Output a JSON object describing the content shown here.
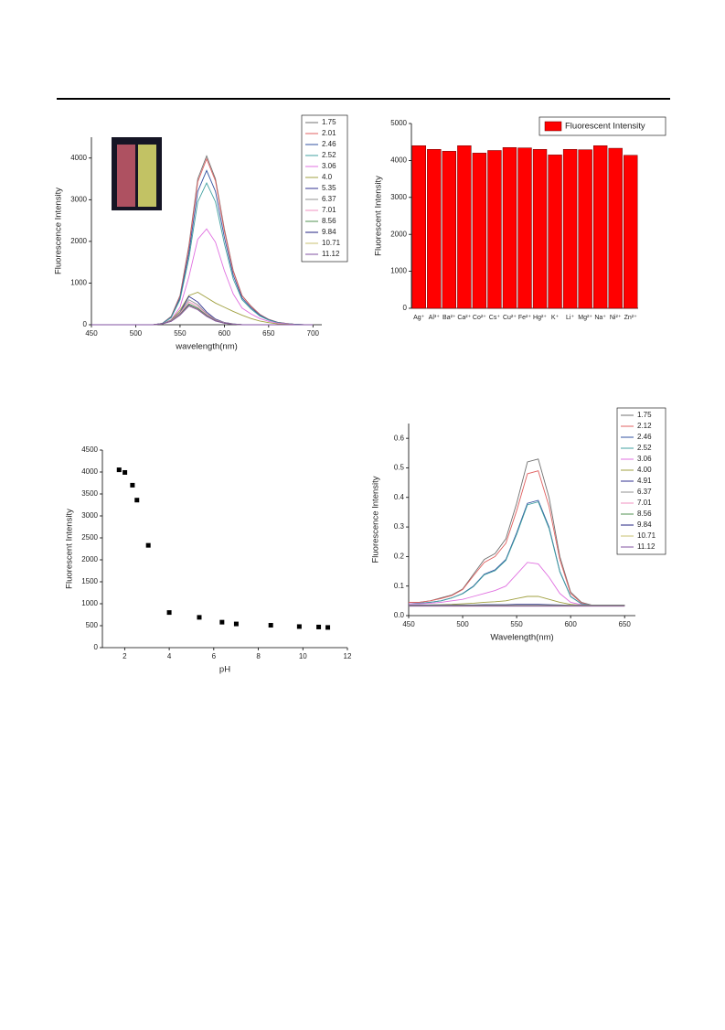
{
  "chart_data": [
    {
      "type": "line",
      "xlabel": "wavelength(nm)",
      "ylabel": "Fluorescence Intensity",
      "x": [
        450,
        460,
        470,
        480,
        490,
        500,
        510,
        520,
        530,
        540,
        550,
        560,
        570,
        580,
        590,
        600,
        610,
        620,
        630,
        640,
        650,
        660,
        670,
        680,
        690,
        700
      ],
      "xlim": [
        450,
        710
      ],
      "xticks": [
        450,
        500,
        550,
        600,
        650,
        700
      ],
      "ylim": [
        0,
        4500
      ],
      "yticks": [
        0,
        1000,
        2000,
        3000,
        4000
      ],
      "series": [
        {
          "name": "1.75",
          "color": "#707070",
          "values": [
            0,
            0,
            0,
            0,
            0,
            0,
            0,
            0,
            30,
            200,
            700,
            1900,
            3500,
            4050,
            3500,
            2300,
            1300,
            700,
            450,
            250,
            130,
            60,
            30,
            10,
            0,
            0
          ]
        },
        {
          "name": "2.01",
          "color": "#e06060",
          "values": [
            0,
            0,
            0,
            0,
            0,
            0,
            0,
            0,
            30,
            190,
            680,
            1850,
            3430,
            3980,
            3450,
            2250,
            1280,
            690,
            440,
            245,
            125,
            60,
            30,
            10,
            0,
            0
          ]
        },
        {
          "name": "2.46",
          "color": "#3050a0",
          "values": [
            0,
            0,
            0,
            0,
            0,
            0,
            0,
            0,
            30,
            180,
            640,
            1720,
            3200,
            3700,
            3200,
            2100,
            1190,
            640,
            410,
            230,
            120,
            55,
            25,
            10,
            0,
            0
          ]
        },
        {
          "name": "2.52",
          "color": "#40a0a0",
          "values": [
            0,
            0,
            0,
            0,
            0,
            0,
            0,
            0,
            25,
            170,
            600,
            1600,
            2950,
            3400,
            2950,
            1950,
            1100,
            600,
            380,
            210,
            110,
            50,
            25,
            10,
            0,
            0
          ]
        },
        {
          "name": "3.06",
          "color": "#e070e0",
          "values": [
            0,
            0,
            0,
            0,
            0,
            0,
            0,
            0,
            20,
            120,
            420,
            1150,
            2050,
            2300,
            1980,
            1300,
            740,
            400,
            260,
            150,
            80,
            40,
            20,
            5,
            0,
            0
          ]
        },
        {
          "name": "4.0",
          "color": "#a0a040",
          "values": [
            0,
            0,
            0,
            0,
            0,
            0,
            0,
            0,
            20,
            110,
            350,
            700,
            780,
            650,
            520,
            420,
            320,
            230,
            150,
            90,
            50,
            20,
            10,
            0,
            0,
            0
          ]
        },
        {
          "name": "5.35",
          "color": "#303090",
          "values": [
            0,
            0,
            0,
            0,
            0,
            0,
            0,
            0,
            20,
            100,
            300,
            680,
            545,
            305,
            135,
            55,
            20,
            0,
            0,
            0,
            0,
            0,
            0,
            0,
            0,
            0
          ]
        },
        {
          "name": "6.37",
          "color": "#909090",
          "values": [
            0,
            0,
            0,
            0,
            0,
            0,
            0,
            0,
            20,
            100,
            290,
            600,
            480,
            270,
            120,
            50,
            18,
            0,
            0,
            0,
            0,
            0,
            0,
            0,
            0,
            0
          ]
        },
        {
          "name": "7.01",
          "color": "#f090c0",
          "values": [
            0,
            0,
            0,
            0,
            0,
            0,
            0,
            0,
            20,
            95,
            270,
            550,
            440,
            250,
            110,
            45,
            16,
            0,
            0,
            0,
            0,
            0,
            0,
            0,
            0,
            0
          ]
        },
        {
          "name": "8.56",
          "color": "#509050",
          "values": [
            0,
            0,
            0,
            0,
            0,
            0,
            0,
            0,
            20,
            90,
            250,
            500,
            400,
            225,
            100,
            40,
            15,
            0,
            0,
            0,
            0,
            0,
            0,
            0,
            0,
            0
          ]
        },
        {
          "name": "9.84",
          "color": "#202080",
          "values": [
            0,
            0,
            0,
            0,
            0,
            0,
            0,
            0,
            20,
            85,
            240,
            470,
            375,
            210,
            95,
            38,
            14,
            0,
            0,
            0,
            0,
            0,
            0,
            0,
            0,
            0
          ]
        },
        {
          "name": "10.71",
          "color": "#c8c070",
          "values": [
            0,
            0,
            0,
            0,
            0,
            0,
            0,
            0,
            20,
            85,
            235,
            460,
            370,
            205,
            92,
            37,
            14,
            0,
            0,
            0,
            0,
            0,
            0,
            0,
            0,
            0
          ]
        },
        {
          "name": "11.12",
          "color": "#8050a0",
          "values": [
            0,
            0,
            0,
            0,
            0,
            0,
            0,
            0,
            20,
            80,
            230,
            450,
            360,
            200,
            90,
            36,
            13,
            0,
            0,
            0,
            0,
            0,
            0,
            0,
            0,
            0
          ]
        }
      ]
    },
    {
      "type": "bar",
      "ylabel": "Fluorescent Intensity",
      "categories": [
        "Ag⁺",
        "Al³⁺",
        "Ba²⁺",
        "Ca²⁺",
        "Co²⁺",
        "Cs⁺",
        "Cu²⁺",
        "Fe²⁺",
        "Hg²⁺",
        "K⁺",
        "Li⁺",
        "Mg²⁺",
        "Na⁺",
        "Ni²⁺",
        "Zn²⁺"
      ],
      "ylim": [
        0,
        5000
      ],
      "yticks": [
        0,
        1000,
        2000,
        3000,
        4000,
        5000
      ],
      "series": [
        {
          "name": "Fluorescent Intensity",
          "color": "#ff0000",
          "values": [
            4400,
            4300,
            4250,
            4400,
            4200,
            4270,
            4350,
            4340,
            4300,
            4150,
            4300,
            4290,
            4400,
            4330,
            4140
          ]
        }
      ]
    },
    {
      "type": "scatter",
      "xlabel": "pH",
      "ylabel": "Fluorescent Intensity",
      "x": [
        1.75,
        2.01,
        2.35,
        2.55,
        3.06,
        4.0,
        5.35,
        6.37,
        7.01,
        8.56,
        9.84,
        10.71,
        11.12
      ],
      "values": [
        4050,
        3990,
        3700,
        3360,
        2330,
        800,
        690,
        580,
        540,
        510,
        480,
        470,
        460
      ],
      "xlim": [
        1,
        12
      ],
      "xticks": [
        2,
        4,
        6,
        8,
        10,
        12
      ],
      "ylim": [
        0,
        4500
      ],
      "yticks": [
        0,
        500,
        1000,
        1500,
        2000,
        2500,
        3000,
        3500,
        4000,
        4500
      ],
      "color": "#000000"
    },
    {
      "type": "line",
      "xlabel": "Wavelength(nm)",
      "ylabel": "Fluorescence Intensity",
      "x": [
        450,
        460,
        470,
        480,
        490,
        500,
        510,
        520,
        530,
        540,
        550,
        560,
        570,
        580,
        590,
        600,
        610,
        620,
        630,
        640,
        650
      ],
      "xlim": [
        450,
        660
      ],
      "xticks": [
        450,
        500,
        550,
        600,
        650
      ],
      "ylim": [
        0,
        0.65
      ],
      "yticks": [
        {
          "value": 0,
          "label": "0.0"
        },
        0.1,
        0.2,
        0.3,
        0.4,
        0.5,
        0.6
      ],
      "series": [
        {
          "name": "1.75",
          "color": "#707070",
          "values": [
            0.045,
            0.045,
            0.05,
            0.06,
            0.07,
            0.09,
            0.14,
            0.19,
            0.21,
            0.26,
            0.38,
            0.52,
            0.53,
            0.4,
            0.2,
            0.08,
            0.045,
            0.035,
            0.035,
            0.035,
            0.035
          ]
        },
        {
          "name": "2.12",
          "color": "#e06060",
          "values": [
            0.045,
            0.045,
            0.05,
            0.058,
            0.068,
            0.088,
            0.135,
            0.18,
            0.2,
            0.245,
            0.355,
            0.48,
            0.49,
            0.37,
            0.19,
            0.075,
            0.043,
            0.035,
            0.035,
            0.035,
            0.035
          ]
        },
        {
          "name": "2.46",
          "color": "#3050a0",
          "values": [
            0.04,
            0.042,
            0.045,
            0.05,
            0.06,
            0.075,
            0.1,
            0.14,
            0.155,
            0.19,
            0.28,
            0.38,
            0.39,
            0.3,
            0.15,
            0.065,
            0.04,
            0.035,
            0.035,
            0.035,
            0.035
          ]
        },
        {
          "name": "2.52",
          "color": "#40a0a0",
          "values": [
            0.04,
            0.042,
            0.045,
            0.05,
            0.06,
            0.074,
            0.098,
            0.138,
            0.152,
            0.187,
            0.275,
            0.375,
            0.385,
            0.295,
            0.148,
            0.064,
            0.04,
            0.035,
            0.035,
            0.035,
            0.035
          ]
        },
        {
          "name": "3.06",
          "color": "#e070e0",
          "values": [
            0.04,
            0.04,
            0.042,
            0.045,
            0.05,
            0.055,
            0.065,
            0.075,
            0.085,
            0.1,
            0.14,
            0.18,
            0.175,
            0.13,
            0.075,
            0.045,
            0.037,
            0.035,
            0.035,
            0.035,
            0.035
          ]
        },
        {
          "name": "4.00",
          "color": "#a0a040",
          "values": [
            0.035,
            0.035,
            0.036,
            0.037,
            0.038,
            0.04,
            0.042,
            0.045,
            0.047,
            0.05,
            0.058,
            0.065,
            0.065,
            0.055,
            0.045,
            0.038,
            0.035,
            0.035,
            0.035,
            0.035,
            0.035
          ]
        },
        {
          "name": "4.91",
          "color": "#303090",
          "values": [
            0.036,
            0.036,
            0.036,
            0.036,
            0.036,
            0.036,
            0.036,
            0.037,
            0.037,
            0.037,
            0.038,
            0.038,
            0.038,
            0.037,
            0.036,
            0.035,
            0.035,
            0.035,
            0.035,
            0.035,
            0.035
          ]
        },
        {
          "name": "6.37",
          "color": "#909090",
          "values": [
            0.035,
            0.035,
            0.035,
            0.035,
            0.035,
            0.035,
            0.035,
            0.035,
            0.035,
            0.035,
            0.035,
            0.035,
            0.035,
            0.035,
            0.035,
            0.035,
            0.035,
            0.035,
            0.035,
            0.035,
            0.035
          ]
        },
        {
          "name": "7.01",
          "color": "#f090c0",
          "values": [
            0.034,
            0.034,
            0.034,
            0.034,
            0.034,
            0.034,
            0.034,
            0.034,
            0.034,
            0.034,
            0.034,
            0.034,
            0.034,
            0.034,
            0.034,
            0.034,
            0.034,
            0.034,
            0.034,
            0.034,
            0.034
          ]
        },
        {
          "name": "8.56",
          "color": "#509050",
          "values": [
            0.034,
            0.034,
            0.034,
            0.034,
            0.034,
            0.034,
            0.034,
            0.034,
            0.034,
            0.034,
            0.034,
            0.034,
            0.034,
            0.034,
            0.034,
            0.034,
            0.034,
            0.034,
            0.034,
            0.034,
            0.034
          ]
        },
        {
          "name": "9.84",
          "color": "#202080",
          "values": [
            0.033,
            0.033,
            0.033,
            0.033,
            0.033,
            0.033,
            0.033,
            0.033,
            0.033,
            0.033,
            0.033,
            0.033,
            0.033,
            0.033,
            0.033,
            0.033,
            0.033,
            0.033,
            0.033,
            0.033,
            0.033
          ]
        },
        {
          "name": "10.71",
          "color": "#c8c070",
          "values": [
            0.033,
            0.033,
            0.033,
            0.033,
            0.033,
            0.033,
            0.033,
            0.033,
            0.033,
            0.033,
            0.033,
            0.033,
            0.033,
            0.033,
            0.033,
            0.033,
            0.033,
            0.033,
            0.033,
            0.033,
            0.033
          ]
        },
        {
          "name": "11.12",
          "color": "#8050a0",
          "values": [
            0.032,
            0.032,
            0.032,
            0.032,
            0.032,
            0.032,
            0.032,
            0.032,
            0.032,
            0.032,
            0.032,
            0.032,
            0.032,
            0.032,
            0.032,
            0.032,
            0.032,
            0.032,
            0.032,
            0.032,
            0.032
          ]
        }
      ]
    }
  ]
}
